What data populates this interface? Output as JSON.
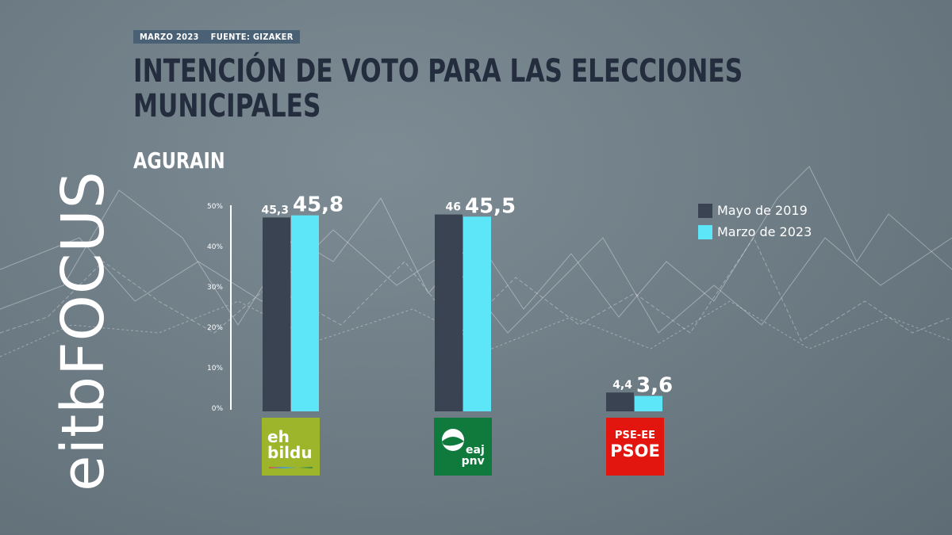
{
  "header": {
    "source": "MARZO 2023    FUENTE: GIZAKER",
    "title": "INTENCIÓN DE VOTO PARA LAS ELECCIONES MUNICIPALES",
    "subtitle": "AGURAIN"
  },
  "brand": {
    "text": "eitbFOCUS"
  },
  "chart_data": {
    "type": "bar",
    "categories": [
      "EH Bildu",
      "EAJ-PNV",
      "PSE-EE PSOE"
    ],
    "series": [
      {
        "name": "Mayo de 2019",
        "color": "#3a4352",
        "values": [
          45.3,
          46,
          4.4
        ],
        "labels": [
          "45,3",
          "46",
          "4,4"
        ]
      },
      {
        "name": "Marzo de 2023",
        "color": "#5ce6f7",
        "values": [
          45.8,
          45.5,
          3.6
        ],
        "labels": [
          "45,8",
          "45,5",
          "3,6"
        ]
      }
    ],
    "yticks": [
      "0%",
      "10%",
      "20%",
      "30%",
      "40%",
      "50%"
    ],
    "ylim": [
      0,
      50
    ],
    "legend": "top-right",
    "grid": false
  },
  "logos": [
    {
      "lines": [
        "eh",
        "bildu"
      ],
      "color": "#9cb52a"
    },
    {
      "lines": [
        "eaj",
        "pnv"
      ],
      "color": "#0f7a3c"
    },
    {
      "lines": [
        "PSE-EE",
        "PSOE"
      ],
      "color": "#e3150f"
    }
  ]
}
